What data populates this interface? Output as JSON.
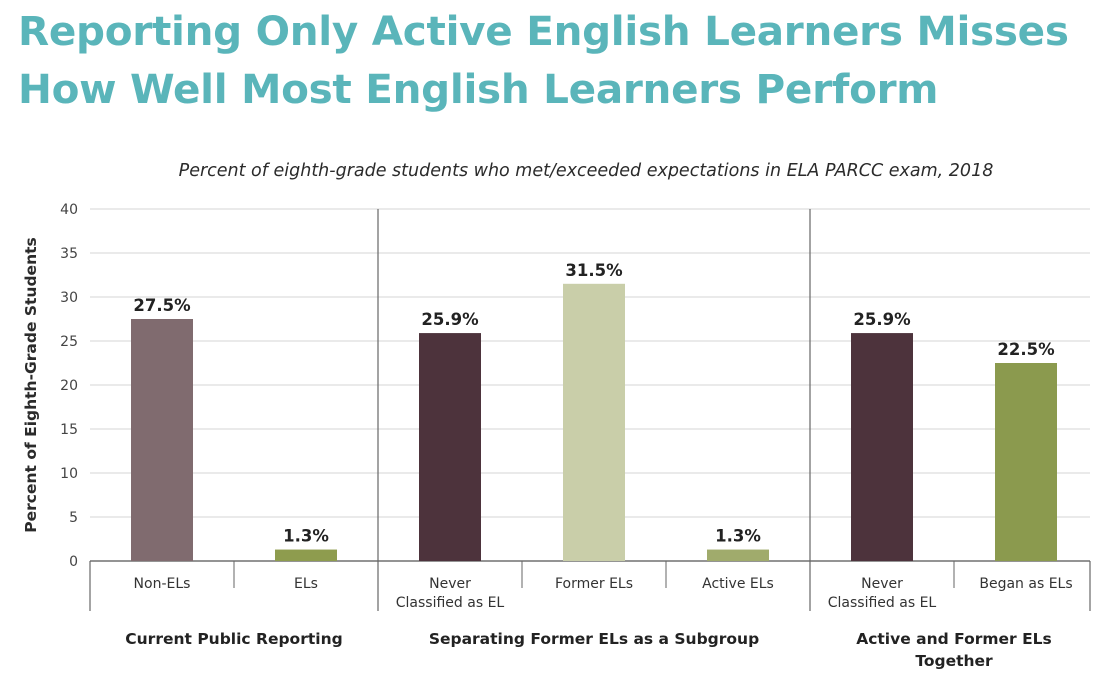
{
  "title_lines": [
    "Reporting Only Active English Learners Misses",
    "How Well Most English Learners Perform"
  ],
  "chart_data": {
    "type": "bar",
    "subtitle": "Percent of eighth-grade students who met/exceeded expectations in ELA PARCC exam, 2018",
    "ylabel": "Percent of Eighth-Grade Students",
    "ylim": [
      0,
      40
    ],
    "yticks": [
      0,
      5,
      10,
      15,
      20,
      25,
      30,
      35,
      40
    ],
    "grid": true,
    "bars": [
      {
        "category": [
          "Non-ELs"
        ],
        "value": 27.5,
        "label": "27.5%",
        "color": "#806b6f",
        "group": 0
      },
      {
        "category": [
          "ELs"
        ],
        "value": 1.3,
        "label": "1.3%",
        "color": "#8e9c4e",
        "group": 0
      },
      {
        "category": [
          "Never",
          "Classified as EL"
        ],
        "value": 25.9,
        "label": "25.9%",
        "color": "#4d333c",
        "group": 1
      },
      {
        "category": [
          "Former ELs"
        ],
        "value": 31.5,
        "label": "31.5%",
        "color": "#c9cea9",
        "group": 1
      },
      {
        "category": [
          "Active ELs"
        ],
        "value": 1.3,
        "label": "1.3%",
        "color": "#a0ab6c",
        "group": 1
      },
      {
        "category": [
          "Never",
          "Classified as EL"
        ],
        "value": 25.9,
        "label": "25.9%",
        "color": "#4d333c",
        "group": 2
      },
      {
        "category": [
          "Began as ELs"
        ],
        "value": 22.5,
        "label": "22.5%",
        "color": "#8b9a4e",
        "group": 2
      }
    ],
    "groups": [
      {
        "lines": [
          "Current Public Reporting"
        ]
      },
      {
        "lines": [
          "Separating Former ELs as a Subgroup"
        ]
      },
      {
        "lines": [
          "Active and Former ELs",
          "Together"
        ]
      }
    ]
  }
}
